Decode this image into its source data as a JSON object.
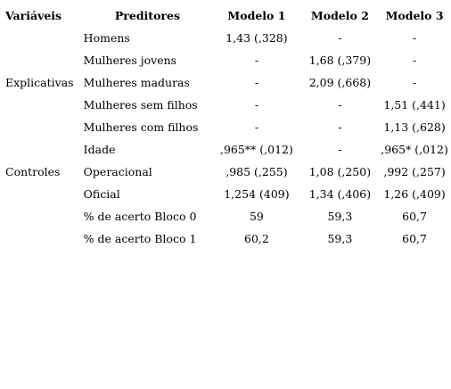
{
  "headers": {
    "variaveis": "Variáveis",
    "preditores": "Preditores",
    "modelo1": "Modelo 1",
    "modelo2": "Modelo 2",
    "modelo3": "Modelo 3"
  },
  "rows": [
    {
      "group": "",
      "predictor": "Homens",
      "m1": "1,43 (,328)",
      "m2": "-",
      "m3": "-"
    },
    {
      "group": "",
      "predictor": "Mulheres jovens",
      "m1": "-",
      "m2": "1,68 (,379)",
      "m3": "-"
    },
    {
      "group": "Explicativas",
      "predictor": "Mulheres maduras",
      "m1": "-",
      "m2": "2,09 (,668)",
      "m3": "-"
    },
    {
      "group": "",
      "predictor": "Mulheres sem filhos",
      "m1": "-",
      "m2": "-",
      "m3": "1,51 (,441)"
    },
    {
      "group": "",
      "predictor": "Mulheres com filhos",
      "m1": "-",
      "m2": "-",
      "m3": "1,13 (,628)"
    },
    {
      "group": "",
      "predictor": "Idade",
      "m1": ",965** (,012)",
      "m2": "-",
      "m3": ",965* (,012)"
    },
    {
      "group": "Controles",
      "predictor": "Operacional",
      "m1": ",985 (,255)",
      "m2": "1,08 (,250)",
      "m3": ",992 (,257)"
    },
    {
      "group": "",
      "predictor": "Oficial",
      "m1": "1,254 (409)",
      "m2": "1,34 (,406)",
      "m3": "1,26 (,409)"
    },
    {
      "group": "",
      "predictor": "% de acerto Bloco 0",
      "m1": "59",
      "m2": "59,3",
      "m3": "60,7"
    },
    {
      "group": "",
      "predictor": "% de acerto Bloco 1",
      "m1": "60,2",
      "m2": "59,3",
      "m3": "60,7"
    }
  ]
}
